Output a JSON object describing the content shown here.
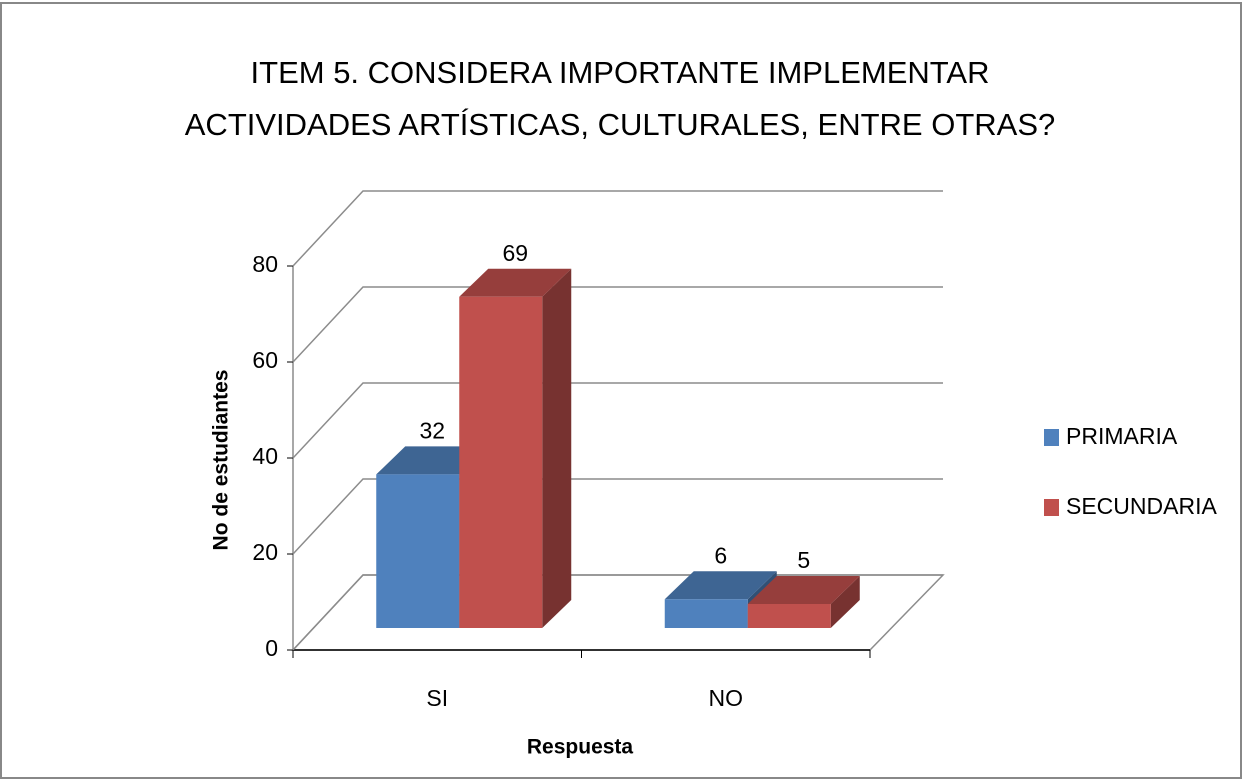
{
  "chart_data": {
    "type": "bar3d",
    "title": "ITEM 5. CONSIDERA IMPORTANTE IMPLEMENTAR ACTIVIDADES ARTÍSTICAS, CULTURALES, ENTRE OTRAS?",
    "x_label": "Respuesta",
    "y_label": "No de estudiantes",
    "categories": [
      "SI",
      "NO"
    ],
    "series": [
      {
        "name": "PRIMARIA",
        "color": "#4f81bd",
        "values": [
          32,
          6
        ]
      },
      {
        "name": "SECUNDARIA",
        "color": "#c0504d",
        "values": [
          69,
          5
        ]
      }
    ],
    "ylim": [
      0,
      80
    ],
    "yticks": [
      0,
      20,
      40,
      60,
      80
    ],
    "grid": true,
    "legend": "right"
  }
}
